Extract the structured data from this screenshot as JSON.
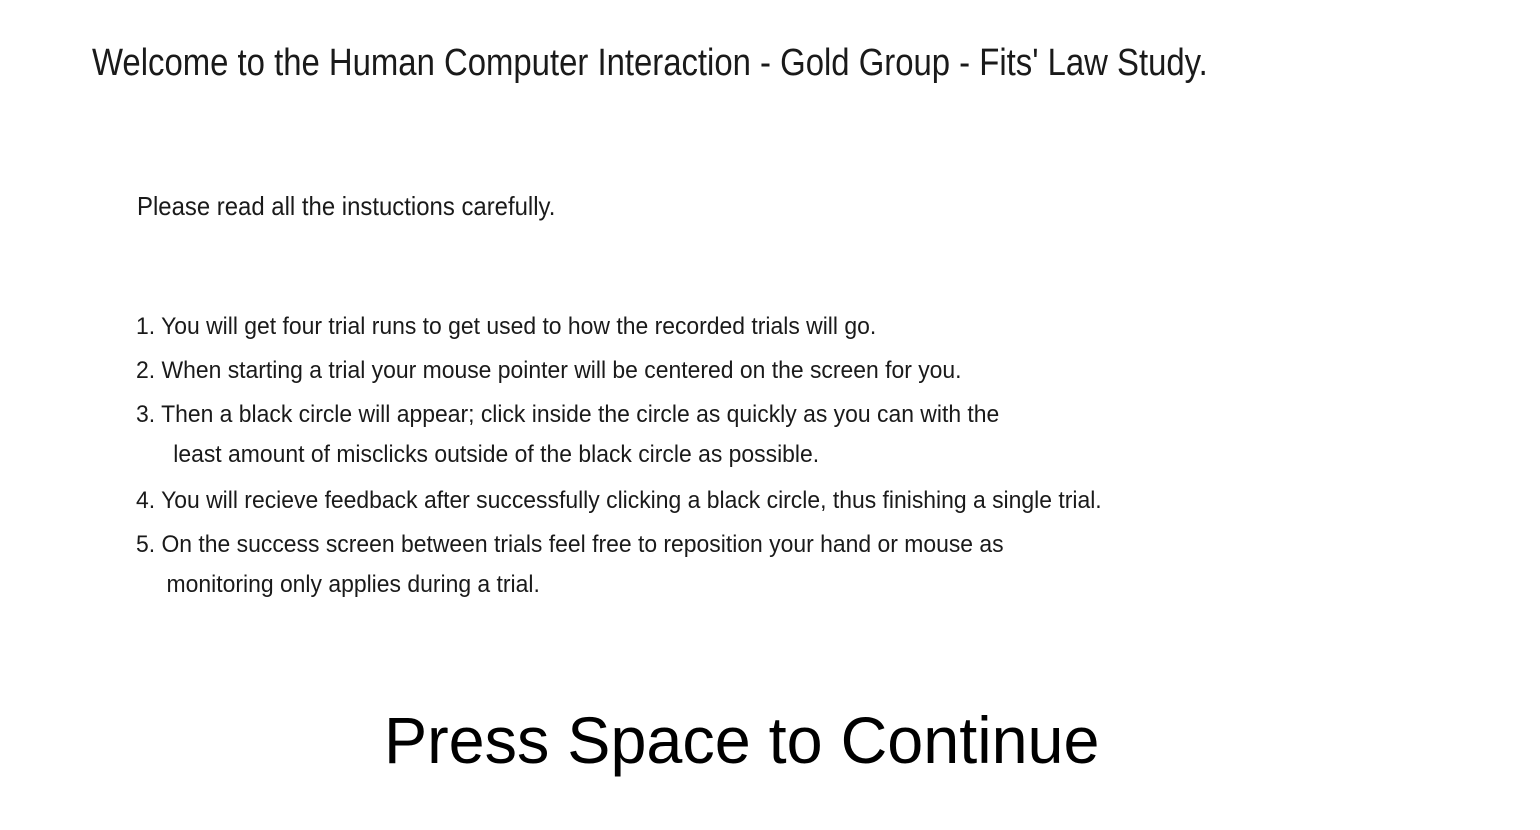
{
  "title": "Welcome to the Human Computer Interaction - Gold Group - Fits' Law Study.",
  "intro": "Please read all the instuctions carefully.",
  "steps": [
    {
      "lines": [
        "1. You will get four trial runs to get used to how the recorded trials will go."
      ]
    },
    {
      "lines": [
        "2. When starting a trial your mouse pointer will be centered on the screen for you."
      ]
    },
    {
      "lines": [
        "3. Then a black circle will appear; click inside the circle as quickly as you can with the",
        "least amount of misclicks outside of the black circle as possible."
      ]
    },
    {
      "lines": [
        "4. You will recieve feedback after successfully clicking a black circle, thus finishing a single trial."
      ]
    },
    {
      "lines": [
        "5. On the success screen between trials feel free to reposition your hand or mouse as",
        "monitoring only applies during a trial."
      ]
    }
  ],
  "prompt": "Press Space to Continue"
}
